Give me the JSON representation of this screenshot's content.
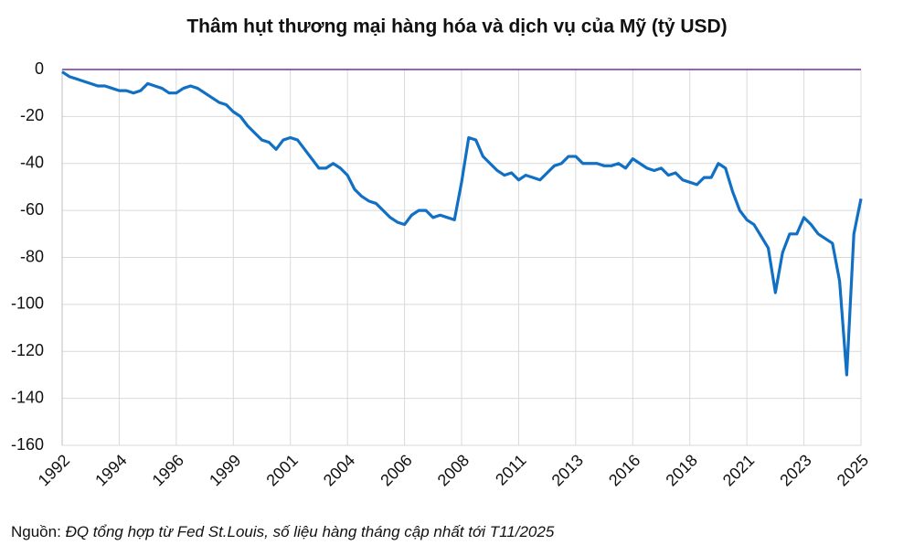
{
  "chart_data": {
    "type": "line",
    "title": "Thâm hụt thương mại hàng hóa và dịch vụ của Mỹ (tỷ USD)",
    "source_label": "Nguồn:",
    "source": "ĐQ tổng hợp từ Fed St.Louis, số liệu hàng tháng cập nhất tới T11/2025",
    "categories": [
      "1992",
      null,
      null,
      null,
      null,
      null,
      null,
      null,
      "1994",
      null,
      null,
      null,
      null,
      null,
      null,
      null,
      "1996",
      null,
      null,
      null,
      null,
      null,
      null,
      null,
      "1999",
      null,
      null,
      null,
      null,
      null,
      null,
      null,
      "2001",
      null,
      null,
      null,
      null,
      null,
      null,
      null,
      "2004",
      null,
      null,
      null,
      null,
      null,
      null,
      null,
      "2006",
      null,
      null,
      null,
      null,
      null,
      null,
      null,
      "2008",
      null,
      null,
      null,
      null,
      null,
      null,
      null,
      "2011",
      null,
      null,
      null,
      null,
      null,
      null,
      null,
      "2013",
      null,
      null,
      null,
      null,
      null,
      null,
      null,
      "2016",
      null,
      null,
      null,
      null,
      null,
      null,
      null,
      "2018",
      null,
      null,
      null,
      null,
      null,
      null,
      null,
      "2021",
      null,
      null,
      null,
      null,
      null,
      null,
      null,
      "2023",
      null,
      null,
      null,
      null,
      null,
      null,
      null,
      "2025"
    ],
    "series": [
      {
        "color": "#1170c4",
        "values": [
          -1,
          -3,
          -4,
          -5,
          -6,
          -7,
          -7,
          -8,
          -9,
          -9,
          -10,
          -9,
          -6,
          -7,
          -8,
          -10,
          -10,
          -8,
          -7,
          -8,
          -10,
          -12,
          -14,
          -15,
          -18,
          -20,
          -24,
          -27,
          -30,
          -31,
          -34,
          -30,
          -29,
          -30,
          -34,
          -38,
          -42,
          -42,
          -40,
          -42,
          -45,
          -51,
          -54,
          -56,
          -57,
          -60,
          -63,
          -65,
          -66,
          -62,
          -60,
          -60,
          -63,
          -62,
          -63,
          -64,
          -48,
          -29,
          -30,
          -37,
          -40,
          -43,
          -45,
          -44,
          -47,
          -45,
          -46,
          -47,
          -44,
          -41,
          -40,
          -37,
          -37,
          -40,
          -40,
          -40,
          -41,
          -41,
          -40,
          -42,
          -38,
          -40,
          -42,
          -43,
          -42,
          -45,
          -44,
          -47,
          -48,
          -49,
          -46,
          -46,
          -40,
          -42,
          -52,
          -60,
          -64,
          -66,
          -71,
          -76,
          -95,
          -78,
          -70,
          -70,
          -63,
          -66,
          -70,
          -72,
          -74,
          -90,
          -130,
          -70,
          -55
        ]
      }
    ],
    "ylim": [
      -160,
      0
    ],
    "yticks": [
      -160,
      -140,
      -120,
      -100,
      -80,
      -60,
      -40,
      -20,
      0
    ],
    "grid": true
  }
}
